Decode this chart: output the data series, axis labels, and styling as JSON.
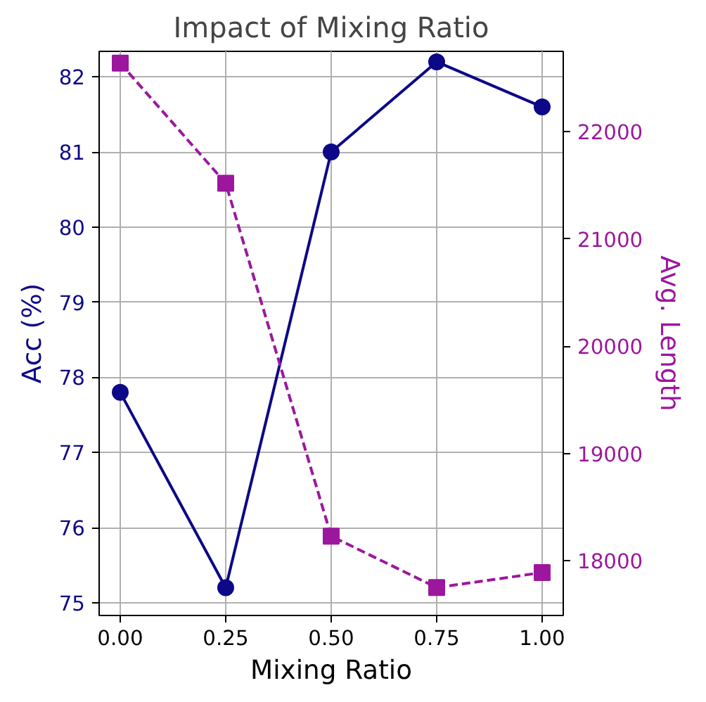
{
  "chart_data": {
    "type": "line",
    "title": "Impact of Mixing Ratio",
    "xlabel": "Mixing Ratio",
    "ylabel": "Acc (%)",
    "y2label": "Avg. Length",
    "x": [
      0.0,
      0.25,
      0.5,
      0.75,
      1.0
    ],
    "series": [
      {
        "color": "#0d0887",
        "values": [
          77.8,
          75.2,
          81.0,
          82.2,
          81.6
        ],
        "marker": "circle",
        "line_style": "solid"
      },
      {
        "color": "#9c179e",
        "values": [
          22640,
          21520,
          18230,
          17750,
          17890
        ],
        "axis": "y2",
        "marker": "square",
        "line_style": "dashed"
      }
    ],
    "xlim": [
      -0.05,
      1.05
    ],
    "xticks": [
      {
        "value": 0,
        "label": "0.00"
      },
      {
        "value": 0.25,
        "label": "0.25"
      },
      {
        "value": 0.5,
        "label": "0.50"
      },
      {
        "value": 0.75,
        "label": "0.75"
      },
      {
        "value": 1,
        "label": "1.00"
      }
    ],
    "ylim": [
      74.83,
      82.34
    ],
    "yticks": [
      75,
      76,
      77,
      78,
      79,
      80,
      81,
      82
    ],
    "y2lim": [
      17490,
      22750
    ],
    "y2ticks": [
      18000,
      19000,
      20000,
      21000,
      22000
    ],
    "grid": true
  }
}
